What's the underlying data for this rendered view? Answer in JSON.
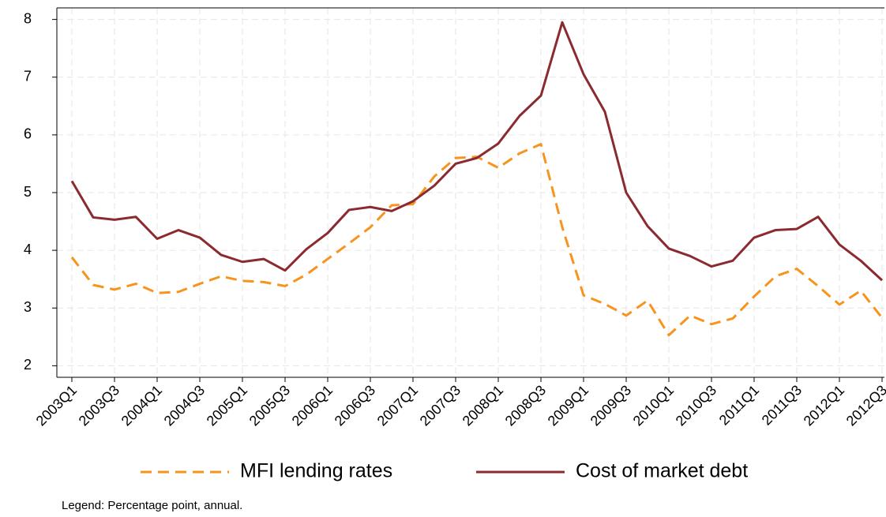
{
  "chart_data": {
    "type": "line",
    "categories": [
      "2003Q1",
      null,
      "2003Q3",
      null,
      "2004Q1",
      null,
      "2004Q3",
      null,
      "2005Q1",
      null,
      "2005Q3",
      null,
      "2006Q1",
      null,
      "2006Q3",
      null,
      "2007Q1",
      null,
      "2007Q3",
      null,
      "2008Q1",
      null,
      "2008Q3",
      null,
      "2009Q1",
      null,
      "2009Q3",
      null,
      "2010Q1",
      null,
      "2010Q3",
      null,
      "2011Q1",
      null,
      "2011Q3",
      null,
      "2012Q1",
      null,
      "2012Q3"
    ],
    "series": [
      {
        "name": "MFI lending rates",
        "color": "#f7941d",
        "dashed": true,
        "values": [
          3.88,
          3.4,
          3.32,
          3.42,
          3.26,
          3.28,
          3.42,
          3.55,
          3.47,
          3.45,
          3.38,
          3.58,
          3.85,
          4.12,
          4.4,
          4.78,
          4.8,
          5.28,
          5.6,
          5.62,
          5.43,
          5.68,
          5.84,
          4.4,
          3.22,
          3.07,
          2.87,
          3.13,
          2.53,
          2.87,
          2.72,
          2.82,
          3.2,
          3.55,
          3.68,
          3.38,
          3.06,
          3.3,
          2.83
        ]
      },
      {
        "name": "Cost of market debt",
        "color": "#8b2a2f",
        "dashed": false,
        "values": [
          5.2,
          4.57,
          4.53,
          4.58,
          4.2,
          4.35,
          4.22,
          3.92,
          3.8,
          3.85,
          3.65,
          4.02,
          4.3,
          4.7,
          4.75,
          4.68,
          4.85,
          5.12,
          5.5,
          5.6,
          5.85,
          6.33,
          6.68,
          7.95,
          7.05,
          6.4,
          5.0,
          4.42,
          4.03,
          3.9,
          3.72,
          3.82,
          4.22,
          4.35,
          4.37,
          4.58,
          4.1,
          3.82,
          3.48
        ]
      }
    ],
    "ylim": [
      1.8,
      8.2
    ],
    "yticks": [
      2,
      3,
      4,
      5,
      6,
      7,
      8
    ],
    "grid": true,
    "note": "Legend: Percentage point, annual."
  }
}
